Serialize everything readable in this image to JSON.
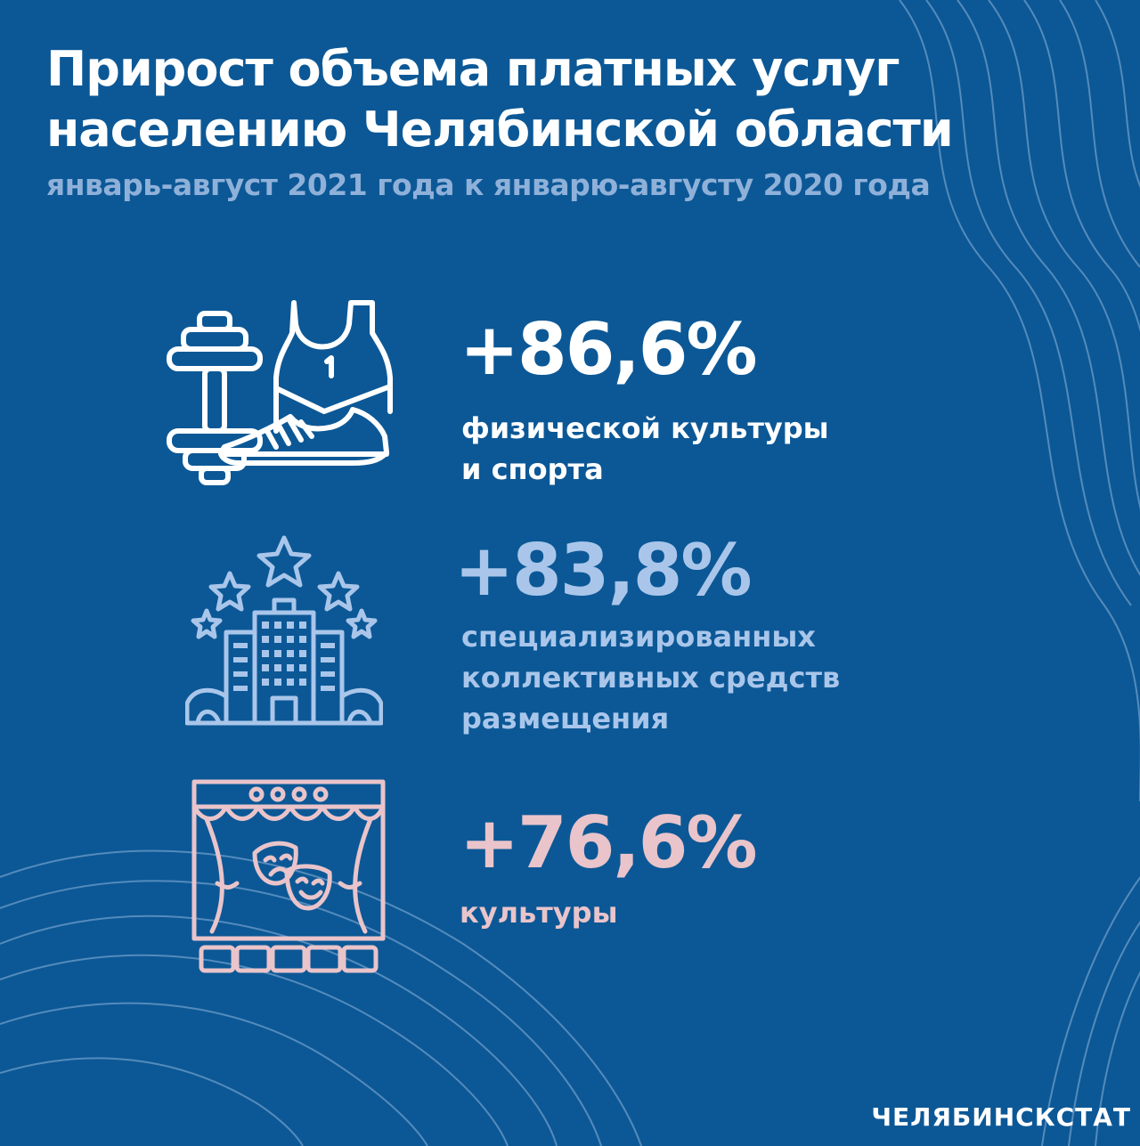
{
  "header": {
    "title_line1": "Прирост объема платных услуг",
    "title_line2": "населению Челябинской области",
    "subtitle": "январь-август 2021 года к январю-августу 2020 года"
  },
  "items": [
    {
      "value": "+86,6%",
      "desc_lines": [
        "физической культуры",
        "и спорта"
      ],
      "color": "#ffffff",
      "icon": "sports-icon"
    },
    {
      "value": "+83,8%",
      "desc_lines": [
        "специализированных",
        "коллективных средств",
        "размещения"
      ],
      "color": "#a9c6ea",
      "icon": "hotel-icon"
    },
    {
      "value": "+76,6%",
      "desc_lines": [
        "культуры"
      ],
      "color": "#e9c4ca",
      "icon": "theater-icon"
    }
  ],
  "footer": {
    "brand": "ЧЕЛЯБИНСКСТАТ"
  }
}
